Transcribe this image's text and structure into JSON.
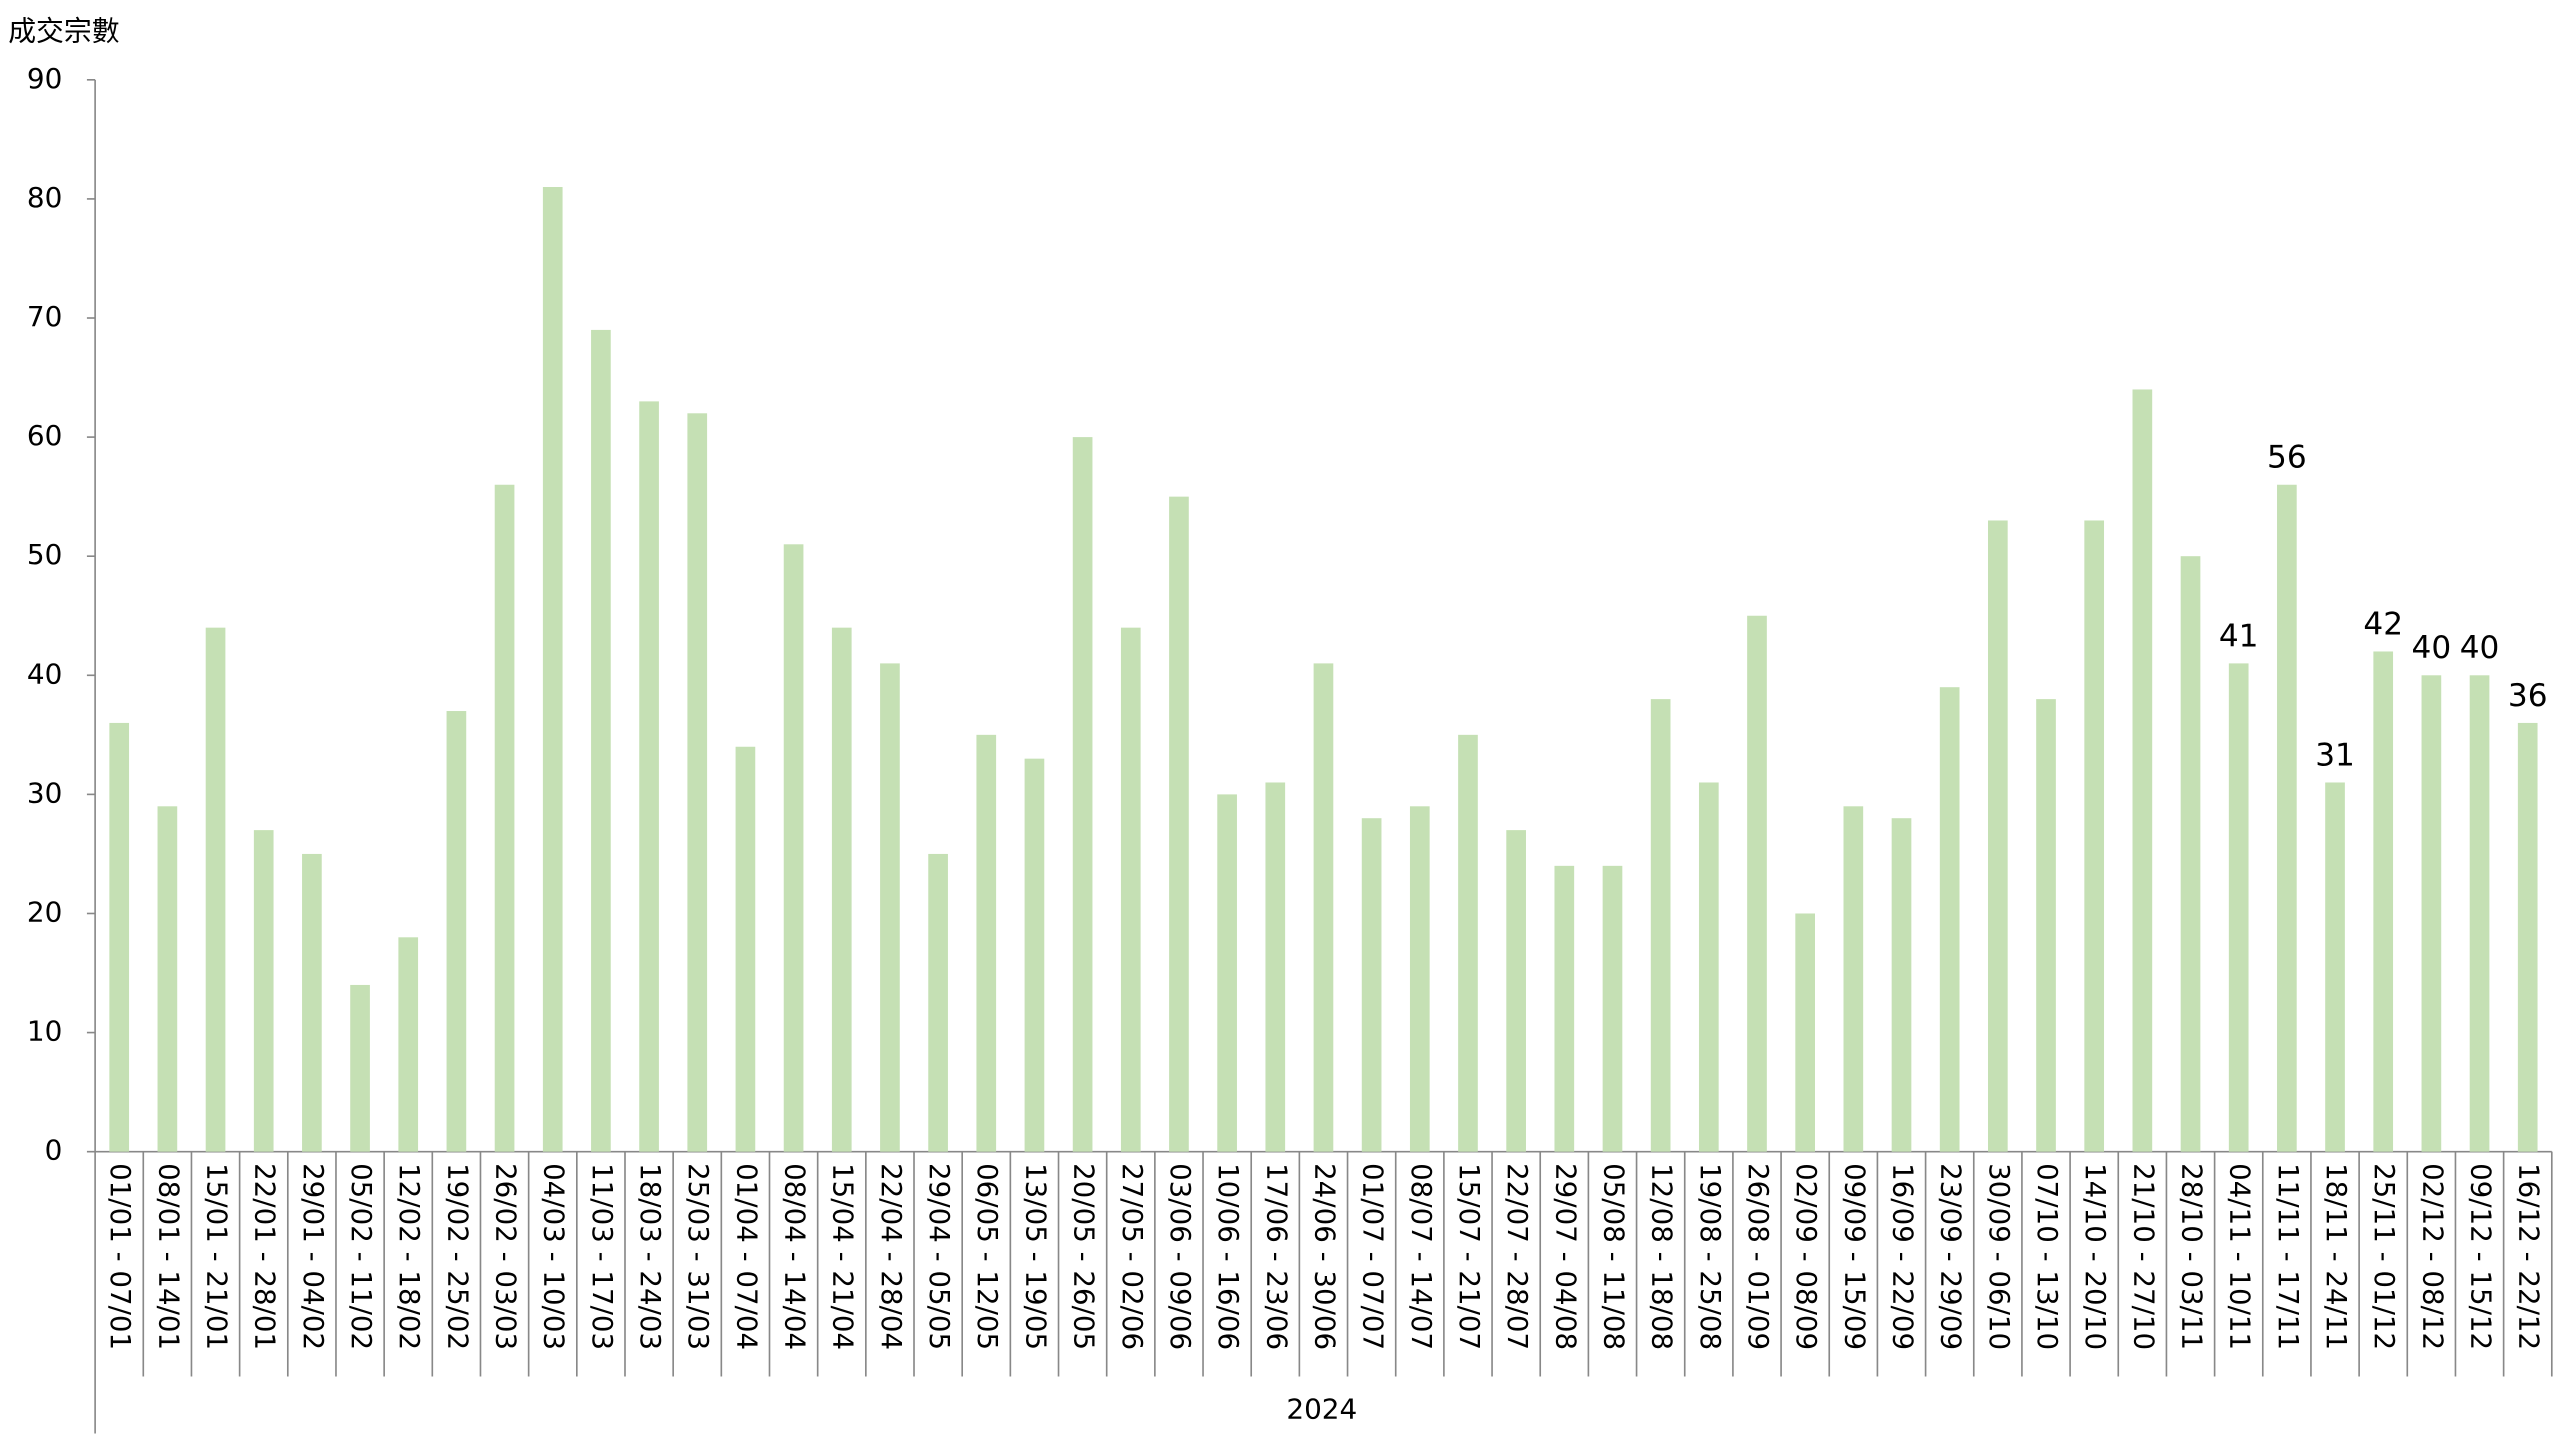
{
  "chart_data": {
    "type": "bar",
    "y_axis_title": "成交宗數",
    "x_group_label": "2024",
    "categories": [
      "01/01 - 07/01",
      "08/01 - 14/01",
      "15/01 - 21/01",
      "22/01 - 28/01",
      "29/01 - 04/02",
      "05/02 - 11/02",
      "12/02 - 18/02",
      "19/02 - 25/02",
      "26/02 - 03/03",
      "04/03 - 10/03",
      "11/03 - 17/03",
      "18/03 - 24/03",
      "25/03 - 31/03",
      "01/04 - 07/04",
      "08/04 - 14/04",
      "15/04 - 21/04",
      "22/04 - 28/04",
      "29/04 - 05/05",
      "06/05 - 12/05",
      "13/05 - 19/05",
      "20/05 - 26/05",
      "27/05 - 02/06",
      "03/06 - 09/06",
      "10/06 - 16/06",
      "17/06 - 23/06",
      "24/06 - 30/06",
      "01/07 - 07/07",
      "08/07 - 14/07",
      "15/07 - 21/07",
      "22/07 - 28/07",
      "29/07 - 04/08",
      "05/08 - 11/08",
      "12/08 - 18/08",
      "19/08 - 25/08",
      "26/08 - 01/09",
      "02/09 - 08/09",
      "09/09 - 15/09",
      "16/09 - 22/09",
      "23/09 - 29/09",
      "30/09 - 06/10",
      "07/10 - 13/10",
      "14/10 - 20/10",
      "21/10 - 27/10",
      "28/10 - 03/11",
      "04/11 - 10/11",
      "11/11 - 17/11",
      "18/11 - 24/11",
      "25/11 - 01/12",
      "02/12 - 08/12",
      "09/12 - 15/12",
      "16/12 - 22/12"
    ],
    "values": [
      36,
      29,
      44,
      27,
      25,
      14,
      18,
      37,
      56,
      81,
      69,
      63,
      62,
      34,
      51,
      44,
      41,
      25,
      35,
      33,
      60,
      44,
      55,
      30,
      31,
      41,
      28,
      29,
      35,
      27,
      24,
      24,
      38,
      31,
      45,
      20,
      29,
      28,
      39,
      53,
      38,
      53,
      64,
      50,
      41,
      56,
      31,
      42,
      40,
      40,
      36
    ],
    "value_labels": [
      null,
      null,
      null,
      null,
      null,
      null,
      null,
      null,
      null,
      null,
      null,
      null,
      null,
      null,
      null,
      null,
      null,
      null,
      null,
      null,
      null,
      null,
      null,
      null,
      null,
      null,
      null,
      null,
      null,
      null,
      null,
      null,
      null,
      null,
      null,
      null,
      null,
      null,
      null,
      null,
      null,
      null,
      null,
      null,
      "41",
      "56",
      "31",
      "42",
      "40",
      "40",
      "36"
    ],
    "color": "#c5e0b4",
    "ylim": [
      0,
      90
    ],
    "yticks": [
      0,
      10,
      20,
      30,
      40,
      50,
      60,
      70,
      80,
      90
    ],
    "grid": false
  }
}
